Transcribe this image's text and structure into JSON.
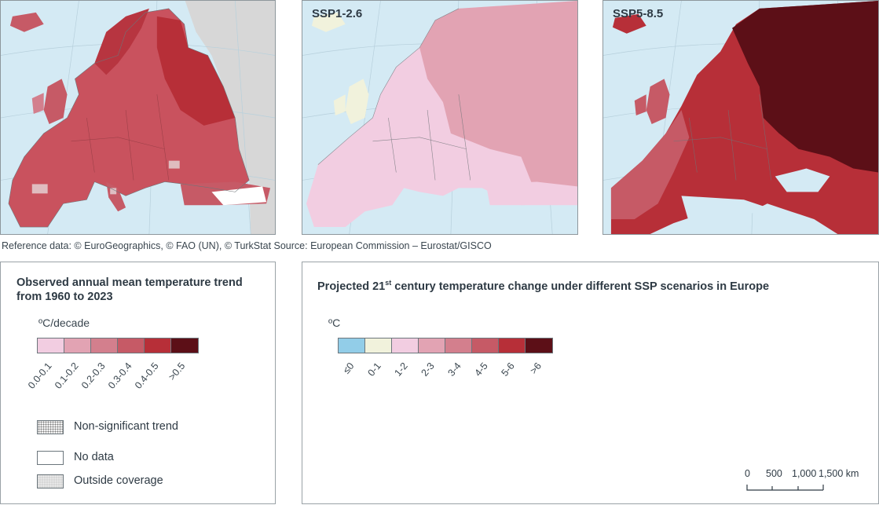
{
  "maps": [
    {
      "name": "observed",
      "title": ""
    },
    {
      "name": "ssp126",
      "title": "SSP1-2.6"
    },
    {
      "name": "ssp585",
      "title": "SSP5-8.5"
    }
  ],
  "reference": "Reference data: © EuroGeographics, © FAO (UN), © TurkStat Source: European Commission – Eurostat/GISCO",
  "observed_legend": {
    "title_line1": "Observed annual mean temperature trend",
    "title_line2": "from 1960 to 2023",
    "unit": "ºC/decade",
    "classes": [
      {
        "label": "0.0-0.1",
        "color": "#f2cde1"
      },
      {
        "label": "0.1-0.2",
        "color": "#e2a3b3"
      },
      {
        "label": "0.2-0.3",
        "color": "#d37f8d"
      },
      {
        "label": "0.3-0.4",
        "color": "#c65a66"
      },
      {
        "label": "0.4-0.5",
        "color": "#b72f38"
      },
      {
        "label": ">0.5",
        "color": "#5c0f17"
      }
    ],
    "non_significant": "Non-significant trend",
    "no_data": "No data",
    "outside": "Outside coverage"
  },
  "projected_legend": {
    "title_pre": "Projected 21",
    "title_sup": "st",
    "title_post": " century temperature change under different SSP scenarios in Europe",
    "unit": "ºC",
    "classes": [
      {
        "label": "≤0",
        "color": "#92cde8"
      },
      {
        "label": "0-1",
        "color": "#f1f2dc"
      },
      {
        "label": "1-2",
        "color": "#f2cde1"
      },
      {
        "label": "2-3",
        "color": "#e2a3b3"
      },
      {
        "label": "3-4",
        "color": "#d37f8d"
      },
      {
        "label": "4-5",
        "color": "#c65a66"
      },
      {
        "label": "5-6",
        "color": "#b72f38"
      },
      {
        "label": ">6",
        "color": "#5c0f17"
      }
    ]
  },
  "scale_bar": {
    "labels": [
      "0",
      "500",
      "1,000",
      "1,500 km"
    ]
  },
  "colors": {
    "sea": "#d4eaf4",
    "border": "#8e979c",
    "outside": "#d7d7d7"
  }
}
